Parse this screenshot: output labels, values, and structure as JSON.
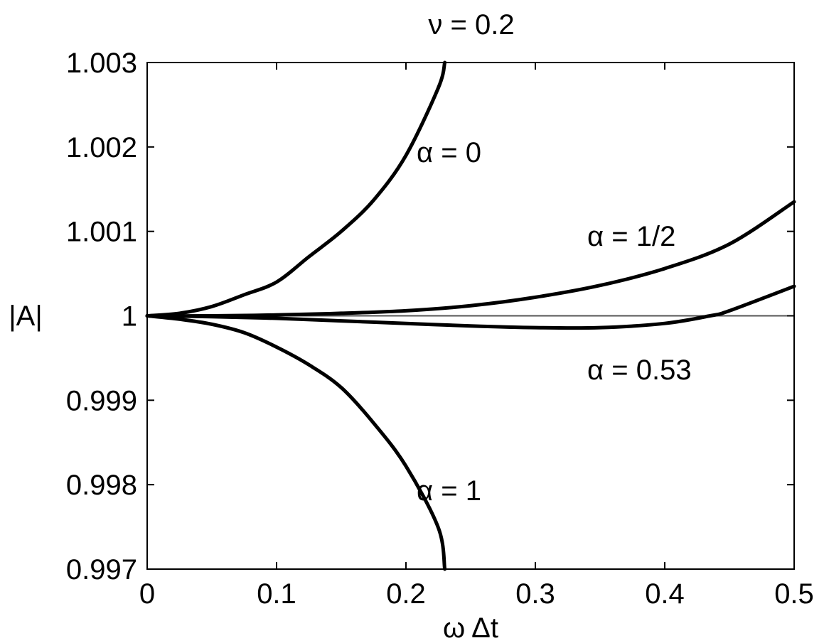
{
  "chart_data": {
    "type": "line",
    "title": "ν = 0.2",
    "xlabel": "ω Δt",
    "ylabel": "|A|",
    "xlim": [
      0,
      0.5
    ],
    "ylim": [
      0.997,
      1.003
    ],
    "xticks": [
      "0",
      "0.1",
      "0.2",
      "0.3",
      "0.4",
      "0.5"
    ],
    "yticks": [
      "0.997",
      "0.998",
      "0.999",
      "1",
      "1.001",
      "1.002",
      "1.003"
    ],
    "grid": false,
    "legend": "none",
    "reference_line": {
      "y": 1
    },
    "series": [
      {
        "name": "α = 0",
        "x": [
          0,
          0.025,
          0.05,
          0.075,
          0.1,
          0.125,
          0.15,
          0.175,
          0.2,
          0.225,
          0.23
        ],
        "y": [
          1.0,
          1.00003,
          1.00011,
          1.00025,
          1.0004,
          1.0007,
          1.001,
          1.00137,
          1.0019,
          1.0027,
          1.003
        ]
      },
      {
        "name": "α = 1/2",
        "x": [
          0,
          0.05,
          0.1,
          0.15,
          0.2,
          0.25,
          0.3,
          0.35,
          0.4,
          0.45,
          0.5
        ],
        "y": [
          1.0,
          1.0,
          1.00001,
          1.00003,
          1.00006,
          1.00012,
          1.00022,
          1.00036,
          1.00056,
          1.00085,
          1.00135
        ]
      },
      {
        "name": "α = 0.53",
        "x": [
          0,
          0.05,
          0.1,
          0.15,
          0.2,
          0.25,
          0.3,
          0.35,
          0.4,
          0.435,
          0.45,
          0.5
        ],
        "y": [
          1.0,
          0.99999,
          0.99997,
          0.99994,
          0.99991,
          0.99988,
          0.99986,
          0.99986,
          0.99991,
          1.0,
          1.00006,
          1.00035
        ]
      },
      {
        "name": "α = 1",
        "x": [
          0,
          0.025,
          0.05,
          0.075,
          0.1,
          0.125,
          0.15,
          0.175,
          0.2,
          0.225,
          0.23
        ],
        "y": [
          1.0,
          0.99996,
          0.9999,
          0.9998,
          0.99963,
          0.99942,
          0.99915,
          0.99873,
          0.99822,
          0.99749,
          0.997
        ]
      }
    ],
    "annotations": [
      "α = 0",
      "α = 1/2",
      "α = 0.53",
      "α = 1"
    ]
  }
}
